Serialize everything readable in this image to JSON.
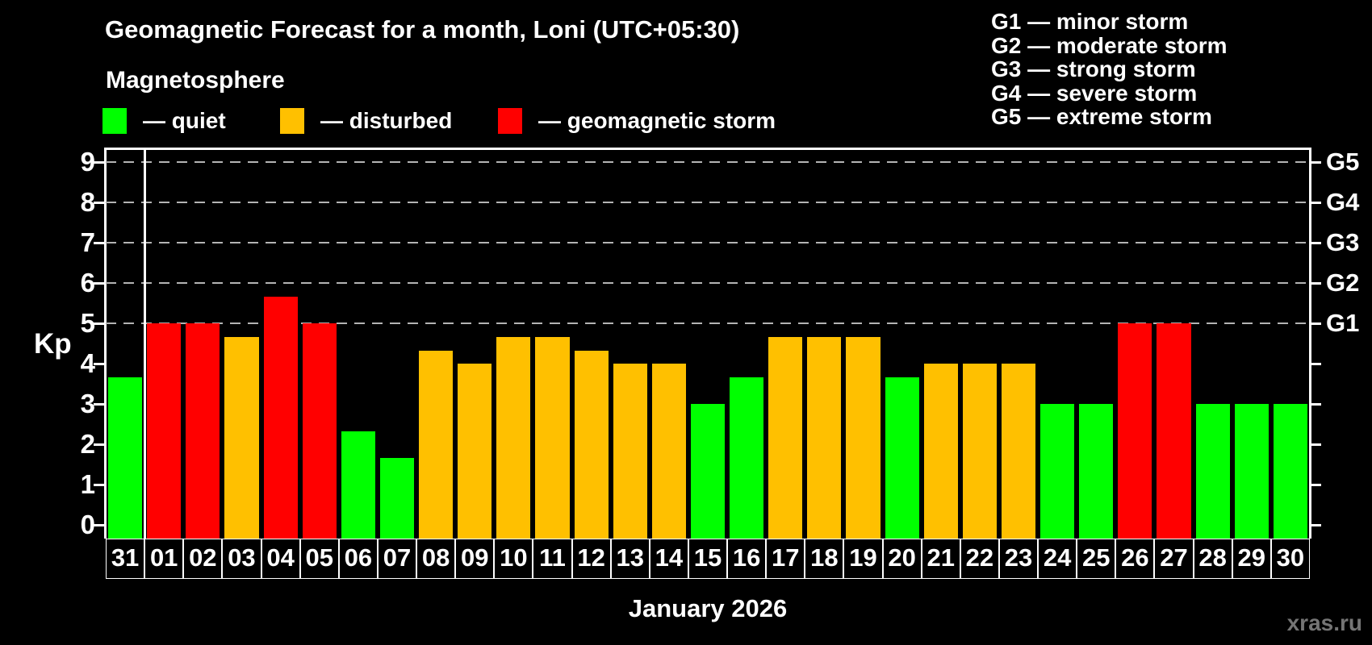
{
  "title": "Geomagnetic Forecast for a month, Loni (UTC+05:30)",
  "subtitle": "Magnetosphere",
  "legend": {
    "items": [
      {
        "key": "quiet",
        "label": "— quiet",
        "color": "#00ff00",
        "x": 127
      },
      {
        "key": "disturbed",
        "label": "— disturbed",
        "color": "#ffc000",
        "x": 347
      },
      {
        "key": "storm",
        "label": "— geomagnetic storm",
        "color": "#ff0000",
        "x": 617
      }
    ]
  },
  "g_legend": {
    "items": [
      "G1 — minor storm",
      "G2 — moderate storm",
      "G3 — strong storm",
      "G4 — severe storm",
      "G5 — extreme storm"
    ]
  },
  "y_axis": {
    "label": "Kp",
    "ticks": [
      0,
      1,
      2,
      3,
      4,
      5,
      6,
      7,
      8,
      9
    ]
  },
  "right_axis": {
    "labels": [
      {
        "text": "G1",
        "kp": 5
      },
      {
        "text": "G2",
        "kp": 6
      },
      {
        "text": "G3",
        "kp": 7
      },
      {
        "text": "G4",
        "kp": 8
      },
      {
        "text": "G5",
        "kp": 9
      }
    ]
  },
  "x_axis": {
    "title": "January 2026"
  },
  "watermark": "xras.ru",
  "chart_data": {
    "type": "bar",
    "title": "Geomagnetic Forecast for a month, Loni (UTC+05:30)",
    "xlabel": "January 2026",
    "ylabel": "Kp",
    "ylim": [
      0,
      9.35
    ],
    "grid_dashed_at_kp": [
      5,
      6,
      7,
      8,
      9
    ],
    "legend_position": "top",
    "categories": [
      "31",
      "01",
      "02",
      "03",
      "04",
      "05",
      "06",
      "07",
      "08",
      "09",
      "10",
      "11",
      "12",
      "13",
      "14",
      "15",
      "16",
      "17",
      "18",
      "19",
      "20",
      "21",
      "22",
      "23",
      "24",
      "25",
      "26",
      "27",
      "28",
      "29",
      "30"
    ],
    "values": [
      3.67,
      5,
      5,
      4.67,
      5.67,
      5,
      2.33,
      1.67,
      4.33,
      4,
      4.67,
      4.67,
      4.33,
      4,
      4,
      3,
      3.67,
      4.67,
      4.67,
      4.67,
      3.67,
      4,
      4,
      4,
      3,
      3,
      5,
      5,
      3,
      3,
      3
    ],
    "statuses": [
      "quiet",
      "storm",
      "storm",
      "disturbed",
      "storm",
      "storm",
      "quiet",
      "quiet",
      "disturbed",
      "disturbed",
      "disturbed",
      "disturbed",
      "disturbed",
      "disturbed",
      "disturbed",
      "quiet",
      "quiet",
      "disturbed",
      "disturbed",
      "disturbed",
      "quiet",
      "disturbed",
      "disturbed",
      "disturbed",
      "quiet",
      "quiet",
      "storm",
      "storm",
      "quiet",
      "quiet",
      "quiet"
    ],
    "status_colors": {
      "quiet": "#00ff00",
      "disturbed": "#ffc000",
      "storm": "#ff0000"
    },
    "separator_after_category": "31"
  }
}
